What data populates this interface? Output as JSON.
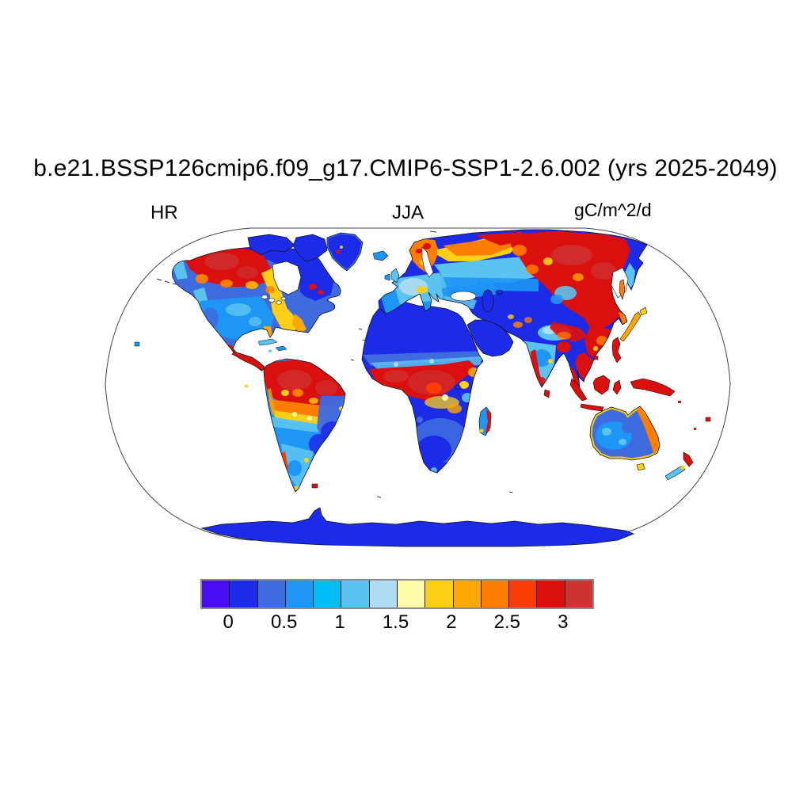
{
  "title": "b.e21.BSSP126cmip6.f09_g17.CMIP6-SSP1-2.6.002 (yrs 2025-2049)",
  "labels": {
    "left": "HR",
    "center": "JJA",
    "right": "gC/m^2/d"
  },
  "colorbar": {
    "units": "gC/m^2/d",
    "tick_labels": [
      "0",
      "0.5",
      "1",
      "1.5",
      "2",
      "2.5",
      "3"
    ],
    "tick_boundary_indices": [
      1,
      3,
      5,
      7,
      9,
      11,
      13
    ],
    "level_interval": 0.25,
    "colors": [
      "#4A0CF0",
      "#1C2BE8",
      "#3E6CE0",
      "#1E96F5",
      "#00BEF5",
      "#5AC3F0",
      "#B0DCF2",
      "#FBFBA8",
      "#FDD017",
      "#FFA702",
      "#FF7D00",
      "#FA3C05",
      "#DC0F0F",
      "#CD3333"
    ]
  },
  "chart_data": {
    "type": "heatmap",
    "title": "b.e21.BSSP126cmip6.f09_g17.CMIP6-SSP1-2.6.002 (yrs 2025-2049)",
    "variable": "HR",
    "season": "JJA",
    "units": "gC/m^2/d",
    "projection": "robinson-world-map",
    "colorbar_levels": [
      0,
      0.25,
      0.5,
      0.75,
      1,
      1.25,
      1.5,
      1.75,
      2,
      2.25,
      2.5,
      2.75,
      3
    ],
    "legend_position": "bottom",
    "regions": [
      {
        "name": "Alaska and northwest Canada",
        "hr_value": "2.75-3+"
      },
      {
        "name": "Arctic Canada, Greenland, Quebec-Labrador",
        "hr_value": "0-0.25"
      },
      {
        "name": "Central and western US plains",
        "hr_value": "0.5-1.25"
      },
      {
        "name": "Eastern US seaboard",
        "hr_value": "1.75-2.5"
      },
      {
        "name": "Mexico west coast and Central America",
        "hr_value": "2.75-3+"
      },
      {
        "name": "Caribbean islands",
        "hr_value": "1-1.5"
      },
      {
        "name": "Northern Amazon basin",
        "hr_value": "2.75-3+"
      },
      {
        "name": "Southern Amazon fringe",
        "hr_value": "2-2.5"
      },
      {
        "name": "Eastern Brazil",
        "hr_value": "0.25-0.75"
      },
      {
        "name": "Argentina and Patagonia",
        "hr_value": "0.75-1.5"
      },
      {
        "name": "Sahara and Arabian Peninsula",
        "hr_value": "0-0.25"
      },
      {
        "name": "Sahel transition belt",
        "hr_value": "0.5-1.25"
      },
      {
        "name": "Guinea coast and Congo basin",
        "hr_value": "2.75-3+"
      },
      {
        "name": "Southern Africa",
        "hr_value": "0-0.5"
      },
      {
        "name": "Madagascar east coast",
        "hr_value": "2.75-3+"
      },
      {
        "name": "Western and central Europe",
        "hr_value": "1-1.75"
      },
      {
        "name": "Scandinavia and northwest Russia",
        "hr_value": "2-2.75"
      },
      {
        "name": "Eastern Siberia and northeast China",
        "hr_value": "2.75-3+"
      },
      {
        "name": "Central Asia and Gobi deserts",
        "hr_value": "0-0.25"
      },
      {
        "name": "Tibetan Plateau",
        "hr_value": "1-1.5"
      },
      {
        "name": "India interior",
        "hr_value": "0.75-1.5"
      },
      {
        "name": "India west coast and Southeast Asia and Indonesia",
        "hr_value": "2.75-3+"
      },
      {
        "name": "Korea and Japan",
        "hr_value": "2-2.75"
      },
      {
        "name": "Australian interior",
        "hr_value": "0.25-0.75"
      },
      {
        "name": "Australian coastal fringe",
        "hr_value": "1.75-2.5"
      },
      {
        "name": "New Zealand North Island",
        "hr_value": "2.75-3"
      },
      {
        "name": "New Zealand South Island",
        "hr_value": "1-1.5"
      },
      {
        "name": "Antarctica",
        "hr_value": "0-0.25"
      }
    ]
  }
}
